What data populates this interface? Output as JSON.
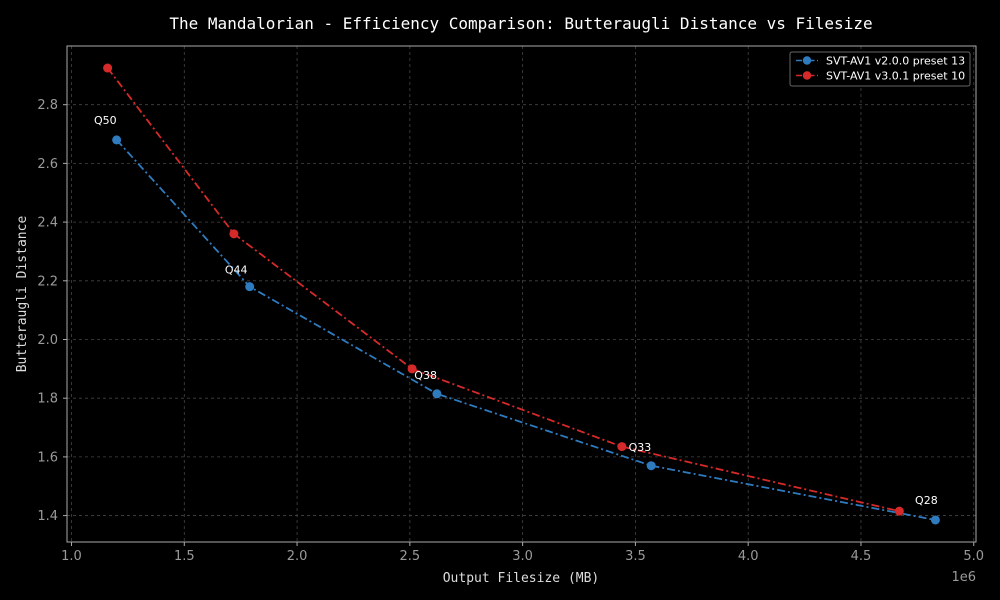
{
  "chart_data": {
    "type": "line",
    "title": "The Mandalorian - Efficiency Comparison: Butteraugli Distance vs Filesize",
    "xlabel": "Output Filesize (MB)",
    "ylabel": "Butteraugli Distance",
    "x_offset_label": "1e6",
    "xlim": [
      0.98,
      5.01
    ],
    "ylim": [
      1.31,
      3.0
    ],
    "x_ticks": [
      1.0,
      1.5,
      2.0,
      2.5,
      3.0,
      3.5,
      4.0,
      4.5,
      5.0
    ],
    "x_tick_labels": [
      "1.0",
      "1.5",
      "2.0",
      "2.5",
      "3.0",
      "3.5",
      "4.0",
      "4.5",
      "5.0"
    ],
    "y_ticks": [
      1.4,
      1.6,
      1.8,
      2.0,
      2.2,
      2.4,
      2.6,
      2.8
    ],
    "y_tick_labels": [
      "1.4",
      "1.6",
      "1.8",
      "2.0",
      "2.2",
      "2.4",
      "2.6",
      "2.8"
    ],
    "grid": true,
    "legend_position": "top-right",
    "series": [
      {
        "name": "SVT-AV1 v2.0.0 preset 13",
        "color": "#2f7bbf",
        "x": [
          1.2,
          1.79,
          2.62,
          3.57,
          4.83
        ],
        "y": [
          2.68,
          2.18,
          1.815,
          1.57,
          1.385
        ]
      },
      {
        "name": "SVT-AV1 v3.0.1 preset 10",
        "color": "#d62a2a",
        "x": [
          1.16,
          1.72,
          2.51,
          3.44,
          4.67
        ],
        "y": [
          2.925,
          2.36,
          1.9,
          1.635,
          1.415
        ]
      }
    ],
    "annotations": [
      {
        "text": "Q50",
        "x": 1.15,
        "y": 2.735
      },
      {
        "text": "Q44",
        "x": 1.73,
        "y": 2.225
      },
      {
        "text": "Q38",
        "x": 2.57,
        "y": 1.865
      },
      {
        "text": "Q33",
        "x": 3.52,
        "y": 1.62
      },
      {
        "text": "Q28",
        "x": 4.79,
        "y": 1.44
      }
    ]
  }
}
